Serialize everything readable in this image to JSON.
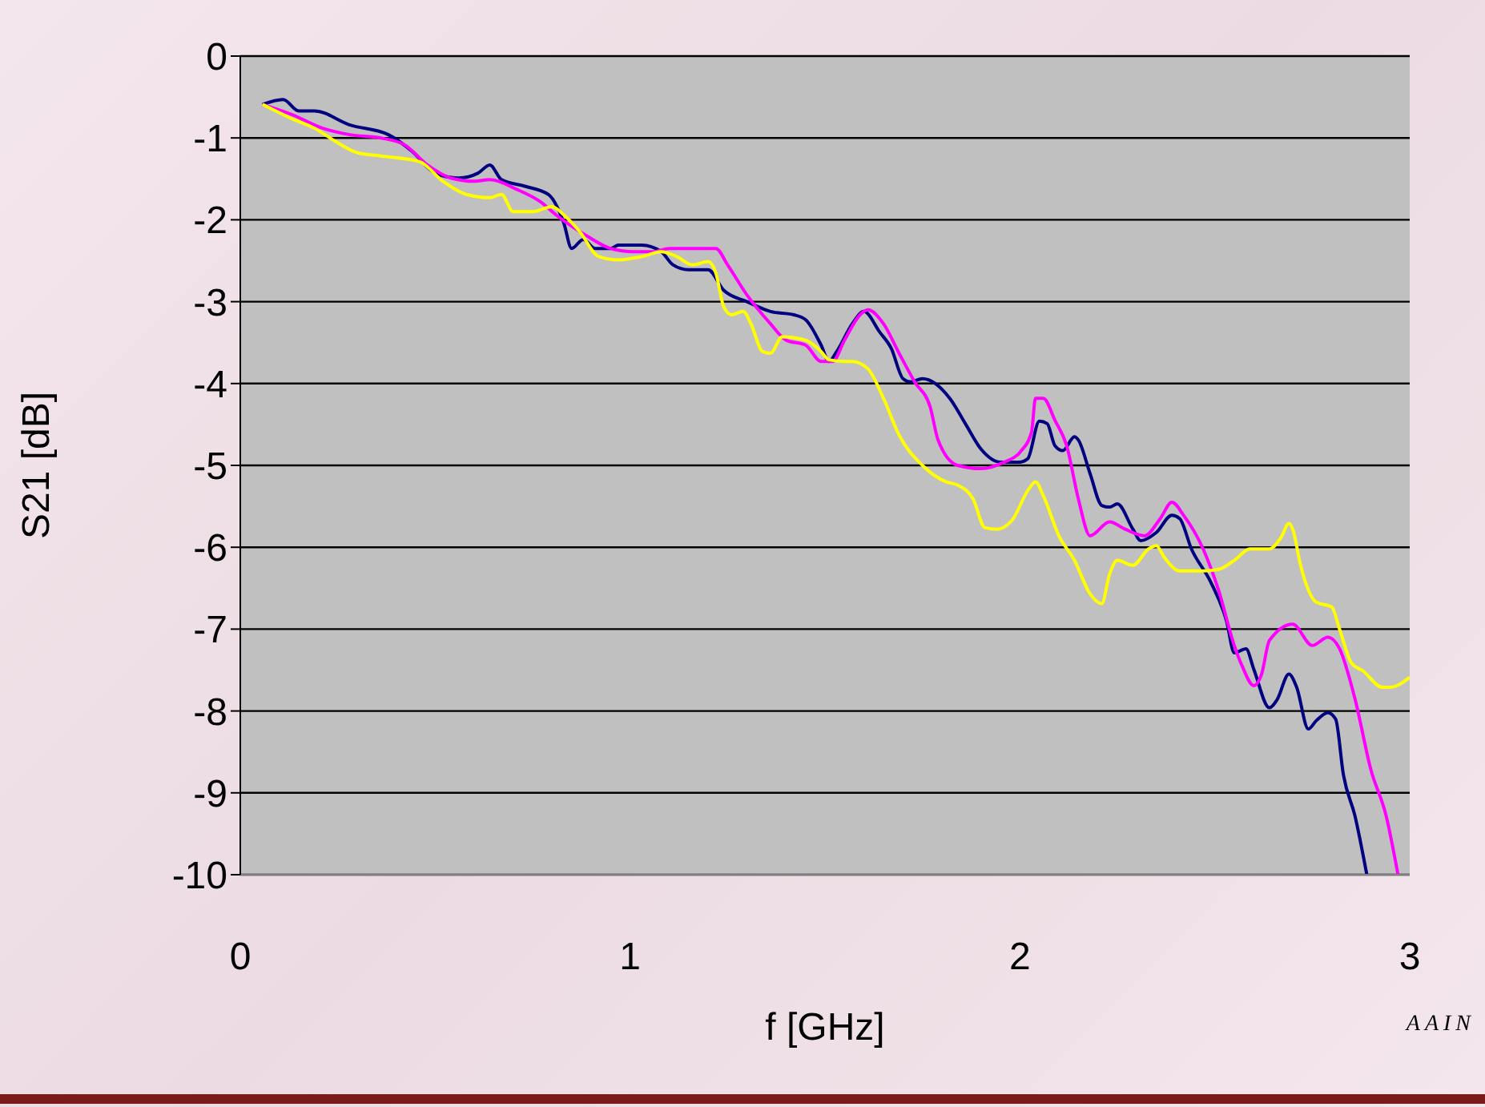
{
  "chart_data": {
    "type": "line",
    "xlabel": "f [GHz]",
    "ylabel": "S21 [dB]",
    "xlim": [
      0,
      3
    ],
    "xticks": [
      0,
      1,
      2,
      3
    ],
    "ylim": [
      -10,
      0
    ],
    "yticks": [
      -10,
      -9,
      -8,
      -7,
      -6,
      -5,
      -4,
      -3,
      -2,
      -1,
      0
    ],
    "grid": "y",
    "marker": "none",
    "line_style": "solid",
    "annotations": [
      "AAIN"
    ],
    "series": [
      {
        "color": "#000080",
        "x": [
          0.057,
          0.11,
          0.15,
          0.19,
          0.28,
          0.38,
          0.44,
          0.5,
          0.56,
          0.61,
          0.64,
          0.67,
          0.73,
          0.79,
          0.83,
          0.85,
          0.88,
          0.91,
          0.95,
          0.97,
          1.03,
          1.08,
          1.11,
          1.15,
          1.2,
          1.24,
          1.3,
          1.36,
          1.42,
          1.45,
          1.49,
          1.51,
          1.53,
          1.57,
          1.6,
          1.64,
          1.67,
          1.7,
          1.72,
          1.75,
          1.82,
          1.86,
          1.9,
          1.95,
          2.0,
          2.02,
          2.05,
          2.07,
          2.09,
          2.11,
          2.14,
          2.15,
          2.18,
          2.21,
          2.23,
          2.25,
          2.29,
          2.31,
          2.35,
          2.39,
          2.41,
          2.44,
          2.49,
          2.53,
          2.55,
          2.58,
          2.6,
          2.64,
          2.66,
          2.69,
          2.71,
          2.74,
          2.76,
          2.79,
          2.81,
          2.83,
          2.86,
          2.89
        ],
        "values": [
          -0.59,
          -0.53,
          -0.67,
          -0.67,
          -0.84,
          -0.96,
          -1.16,
          -1.43,
          -1.49,
          -1.43,
          -1.33,
          -1.51,
          -1.59,
          -1.69,
          -2.04,
          -2.35,
          -2.24,
          -2.35,
          -2.35,
          -2.31,
          -2.31,
          -2.39,
          -2.55,
          -2.61,
          -2.61,
          -2.86,
          -3.0,
          -3.12,
          -3.16,
          -3.22,
          -3.53,
          -3.73,
          -3.61,
          -3.27,
          -3.12,
          -3.37,
          -3.57,
          -3.94,
          -3.98,
          -3.94,
          -4.18,
          -4.49,
          -4.8,
          -4.96,
          -4.96,
          -4.92,
          -4.46,
          -4.49,
          -4.76,
          -4.82,
          -4.65,
          -4.69,
          -5.1,
          -5.49,
          -5.51,
          -5.47,
          -5.78,
          -5.92,
          -5.82,
          -5.61,
          -5.65,
          -6.02,
          -6.43,
          -6.9,
          -7.29,
          -7.24,
          -7.49,
          -7.96,
          -7.86,
          -7.55,
          -7.71,
          -8.22,
          -8.12,
          -8.02,
          -8.1,
          -8.78,
          -9.29,
          -10
        ]
      },
      {
        "color": "#ff00ff",
        "x": [
          0.057,
          0.13,
          0.21,
          0.28,
          0.36,
          0.42,
          0.48,
          0.54,
          0.6,
          0.64,
          0.71,
          0.77,
          0.81,
          0.89,
          0.95,
          1.01,
          1.06,
          1.1,
          1.14,
          1.18,
          1.22,
          1.25,
          1.3,
          1.36,
          1.4,
          1.45,
          1.49,
          1.52,
          1.55,
          1.59,
          1.61,
          1.65,
          1.69,
          1.73,
          1.77,
          1.79,
          1.84,
          1.9,
          1.96,
          2.0,
          2.03,
          2.04,
          2.06,
          2.09,
          2.12,
          2.15,
          2.18,
          2.23,
          2.27,
          2.32,
          2.36,
          2.39,
          2.42,
          2.47,
          2.51,
          2.55,
          2.57,
          2.6,
          2.62,
          2.64,
          2.7,
          2.75,
          2.79,
          2.82,
          2.86,
          2.9,
          2.94,
          2.97
        ],
        "values": [
          -0.59,
          -0.71,
          -0.88,
          -0.96,
          -1.0,
          -1.08,
          -1.33,
          -1.49,
          -1.53,
          -1.51,
          -1.63,
          -1.78,
          -1.94,
          -2.2,
          -2.35,
          -2.39,
          -2.39,
          -2.35,
          -2.35,
          -2.35,
          -2.35,
          -2.55,
          -2.92,
          -3.27,
          -3.47,
          -3.53,
          -3.73,
          -3.73,
          -3.47,
          -3.16,
          -3.1,
          -3.27,
          -3.63,
          -3.98,
          -4.29,
          -4.69,
          -5.0,
          -5.04,
          -4.96,
          -4.84,
          -4.59,
          -4.18,
          -4.18,
          -4.45,
          -4.76,
          -5.41,
          -5.86,
          -5.69,
          -5.78,
          -5.86,
          -5.65,
          -5.45,
          -5.61,
          -6.02,
          -6.53,
          -7.2,
          -7.45,
          -7.69,
          -7.55,
          -7.14,
          -6.94,
          -7.2,
          -7.1,
          -7.24,
          -7.86,
          -8.71,
          -9.29,
          -10
        ]
      },
      {
        "color": "#ffff00",
        "x": [
          0.057,
          0.13,
          0.19,
          0.25,
          0.3,
          0.36,
          0.46,
          0.52,
          0.58,
          0.64,
          0.67,
          0.7,
          0.75,
          0.8,
          0.83,
          0.87,
          0.92,
          0.97,
          1.03,
          1.08,
          1.12,
          1.16,
          1.2,
          1.22,
          1.24,
          1.26,
          1.29,
          1.31,
          1.34,
          1.36,
          1.39,
          1.45,
          1.49,
          1.51,
          1.55,
          1.57,
          1.61,
          1.65,
          1.69,
          1.75,
          1.81,
          1.84,
          1.88,
          1.91,
          1.94,
          1.98,
          2.02,
          2.04,
          2.06,
          2.1,
          2.14,
          2.18,
          2.21,
          2.23,
          2.25,
          2.29,
          2.33,
          2.35,
          2.37,
          2.41,
          2.47,
          2.51,
          2.55,
          2.59,
          2.64,
          2.67,
          2.69,
          2.7,
          2.72,
          2.76,
          2.8,
          2.82,
          2.85,
          2.88,
          2.93,
          2.95,
          3.0
        ],
        "values": [
          -0.59,
          -0.76,
          -0.88,
          -1.06,
          -1.18,
          -1.22,
          -1.29,
          -1.53,
          -1.69,
          -1.73,
          -1.69,
          -1.9,
          -1.9,
          -1.84,
          -1.94,
          -2.14,
          -2.45,
          -2.49,
          -2.45,
          -2.39,
          -2.45,
          -2.55,
          -2.51,
          -2.65,
          -3.06,
          -3.16,
          -3.12,
          -3.27,
          -3.61,
          -3.63,
          -3.43,
          -3.47,
          -3.61,
          -3.71,
          -3.73,
          -3.73,
          -3.82,
          -4.18,
          -4.63,
          -5.0,
          -5.2,
          -5.24,
          -5.41,
          -5.76,
          -5.78,
          -5.67,
          -5.31,
          -5.2,
          -5.37,
          -5.86,
          -6.16,
          -6.57,
          -6.69,
          -6.33,
          -6.16,
          -6.22,
          -6.02,
          -5.98,
          -6.12,
          -6.29,
          -6.29,
          -6.27,
          -6.16,
          -6.02,
          -6.02,
          -5.88,
          -5.71,
          -5.78,
          -6.22,
          -6.67,
          -6.73,
          -7.0,
          -7.41,
          -7.51,
          -7.71,
          -7.71,
          -7.59
        ]
      }
    ]
  }
}
